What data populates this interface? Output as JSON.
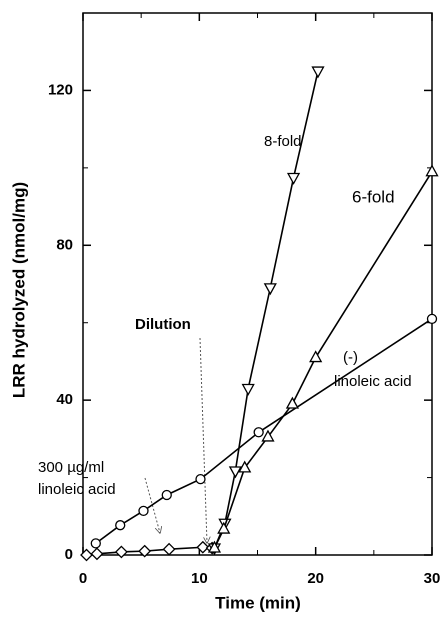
{
  "chart_data": {
    "type": "line",
    "xlabel": "Time (min)",
    "ylabel": "LRR hydrolyzed (nmol/mg)",
    "xlim": [
      0,
      30
    ],
    "ylim": [
      0,
      140
    ],
    "xticks": [
      0,
      10,
      20,
      30
    ],
    "yticks": [
      0,
      40,
      80,
      120
    ],
    "xticks_minor": [
      5,
      15,
      25
    ],
    "yticks_minor": [
      20,
      60,
      100
    ],
    "series": [
      {
        "name": "(-) linoleic acid",
        "marker": "circle",
        "color": "#000000",
        "x": [
          1.1,
          3.2,
          5.2,
          7.2,
          10.1,
          15.1,
          30
        ],
        "values": [
          3,
          7.7,
          11.4,
          15.5,
          19.6,
          31.7,
          61
        ]
      },
      {
        "name": "300 µg/ml linoleic acid",
        "marker": "diamond",
        "color": "#000000",
        "x": [
          0.3,
          1.2,
          3.3,
          5.3,
          7.4,
          10.3,
          11.1
        ],
        "values": [
          0,
          0.3,
          0.8,
          1,
          1.5,
          2,
          1.8
        ]
      },
      {
        "name": "8-fold",
        "marker": "triangle-down",
        "color": "#000000",
        "x": [
          11.3,
          12.2,
          13.1,
          14.2,
          16.1,
          18.1,
          20.2
        ],
        "values": [
          1.8,
          8.2,
          21.7,
          43,
          69,
          97.5,
          125
        ]
      },
      {
        "name": "6-fold",
        "marker": "triangle-up",
        "color": "#000000",
        "x": [
          11.3,
          12.1,
          13.9,
          15.9,
          18,
          20,
          30
        ],
        "values": [
          1.8,
          6.7,
          22.5,
          30.5,
          39,
          51,
          99
        ]
      }
    ],
    "annotations": [
      "8-fold",
      "6-fold",
      "(-)",
      "linoleic acid",
      "Dilution",
      "300 µg/ml",
      "linoleic acid"
    ]
  }
}
